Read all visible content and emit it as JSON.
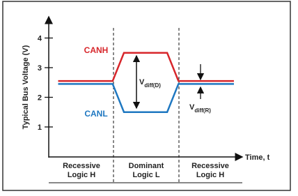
{
  "chart_data": {
    "type": "line",
    "y_label": "Typical Bus Voltage (V)",
    "x_label": "Time, t",
    "ylim": [
      0,
      4.6
    ],
    "yticks": [
      1,
      2,
      3,
      4
    ],
    "xlim": [
      0,
      10
    ],
    "x": [
      0.5,
      3.4,
      4.0,
      6.3,
      6.9,
      9.85
    ],
    "series": [
      {
        "name": "CANH",
        "color": "#d7262b",
        "values": [
          2.55,
          2.55,
          3.5,
          3.5,
          2.55,
          2.55
        ]
      },
      {
        "name": "CANL",
        "color": "#1f78c1",
        "values": [
          2.45,
          2.45,
          1.5,
          1.5,
          2.45,
          2.45
        ]
      }
    ],
    "annotations": [
      {
        "symbol": "V",
        "subscript": "diff(D)"
      },
      {
        "symbol": "V",
        "subscript": "diff(R)"
      }
    ],
    "regions": [
      [
        "Recessive",
        "Logic H"
      ],
      [
        "Dominant",
        "Logic L"
      ],
      [
        "Recessive",
        "Logic H"
      ]
    ]
  }
}
